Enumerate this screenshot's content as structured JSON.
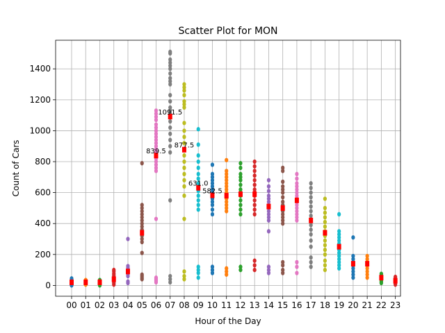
{
  "chart_data": {
    "type": "scatter",
    "title": "Scatter Plot for MON",
    "xlabel": "Hour of the Day",
    "ylabel": "Count of Cars",
    "grid": true,
    "legend": "none",
    "ylim": [
      -70,
      1585
    ],
    "yticks": [
      0,
      200,
      400,
      600,
      800,
      1000,
      1200,
      1400
    ],
    "categories": [
      "00",
      "01",
      "02",
      "03",
      "04",
      "05",
      "06",
      "07",
      "08",
      "09",
      "10",
      "11",
      "12",
      "13",
      "14",
      "15",
      "16",
      "17",
      "18",
      "19",
      "20",
      "21",
      "22",
      "23"
    ],
    "palette": [
      "#1f77b4",
      "#ff7f0e",
      "#2ca02c",
      "#d62728",
      "#9467bd",
      "#8c564b",
      "#e377c2",
      "#7f7f7f",
      "#bcbd22",
      "#17becf"
    ],
    "median_color": "#ff0000",
    "series": [
      {
        "x": "00",
        "points": [
          0,
          5,
          10,
          15,
          20,
          25,
          30,
          35,
          45
        ],
        "median": 20
      },
      {
        "x": "01",
        "points": [
          5,
          10,
          15,
          20,
          25,
          30,
          35
        ],
        "median": 20
      },
      {
        "x": "02",
        "points": [
          0,
          5,
          10,
          15,
          20,
          25,
          30,
          35
        ],
        "median": 20
      },
      {
        "x": "03",
        "points": [
          5,
          15,
          25,
          35,
          45,
          55,
          65,
          75,
          90,
          100
        ],
        "median": 40
      },
      {
        "x": "04",
        "points": [
          15,
          25,
          60,
          75,
          85,
          95,
          105,
          115,
          125,
          300
        ],
        "median": 90
      },
      {
        "x": "05",
        "points": [
          40,
          50,
          60,
          70,
          210,
          280,
          300,
          320,
          340,
          360,
          380,
          400,
          420,
          440,
          460,
          480,
          500,
          520,
          790
        ],
        "median": 340
      },
      {
        "x": "06",
        "points": [
          20,
          30,
          40,
          50,
          430,
          740,
          760,
          780,
          800,
          820,
          840,
          860,
          880,
          900,
          920,
          940,
          960,
          980,
          1000,
          1020,
          1040,
          1070,
          1090,
          1110,
          1130
        ],
        "median": 839.5
      },
      {
        "x": "07",
        "points": [
          20,
          40,
          60,
          550,
          860,
          900,
          940,
          980,
          1020,
          1060,
          1090,
          1110,
          1130,
          1150,
          1190,
          1230,
          1300,
          1320,
          1340,
          1370,
          1400,
          1420,
          1440,
          1460,
          1500,
          1510
        ],
        "median": 1091.5
      },
      {
        "x": "08",
        "points": [
          40,
          60,
          90,
          430,
          580,
          640,
          680,
          720,
          760,
          800,
          840,
          880,
          920,
          960,
          1000,
          1050,
          1150,
          1170,
          1190,
          1230,
          1260,
          1280,
          1300
        ],
        "median": 877.5
      },
      {
        "x": "09",
        "points": [
          50,
          80,
          100,
          120,
          490,
          520,
          550,
          580,
          610,
          640,
          660,
          690,
          720,
          760,
          800,
          840,
          910,
          1010
        ],
        "median": 631.0
      },
      {
        "x": "10",
        "points": [
          80,
          100,
          120,
          460,
          490,
          520,
          540,
          560,
          580,
          600,
          620,
          640,
          660,
          680,
          700,
          720,
          780
        ],
        "median": 582.5
      },
      {
        "x": "11",
        "points": [
          70,
          90,
          110,
          480,
          500,
          520,
          540,
          560,
          580,
          600,
          620,
          640,
          660,
          680,
          700,
          720,
          740,
          810
        ],
        "median": 580
      },
      {
        "x": "12",
        "points": [
          100,
          120,
          460,
          490,
          520,
          550,
          580,
          600,
          620,
          650,
          680,
          700,
          720,
          760,
          790
        ],
        "median": 590
      },
      {
        "x": "13",
        "points": [
          100,
          130,
          160,
          460,
          490,
          520,
          550,
          580,
          600,
          620,
          650,
          680,
          710,
          740,
          770,
          800
        ],
        "median": 590
      },
      {
        "x": "14",
        "points": [
          80,
          100,
          120,
          350,
          420,
          440,
          460,
          480,
          500,
          520,
          540,
          560,
          580,
          610,
          640,
          680
        ],
        "median": 510
      },
      {
        "x": "15",
        "points": [
          80,
          100,
          130,
          150,
          400,
          420,
          440,
          460,
          480,
          500,
          520,
          540,
          570,
          600,
          620,
          640,
          670,
          740,
          760
        ],
        "median": 500
      },
      {
        "x": "16",
        "points": [
          80,
          120,
          150,
          420,
          440,
          460,
          480,
          500,
          520,
          540,
          560,
          580,
          600,
          620,
          640,
          660,
          690,
          720
        ],
        "median": 550
      },
      {
        "x": "17",
        "points": [
          120,
          150,
          180,
          250,
          290,
          330,
          360,
          390,
          420,
          450,
          480,
          510,
          540,
          570,
          600,
          630,
          660
        ],
        "median": 420
      },
      {
        "x": "18",
        "points": [
          100,
          130,
          160,
          200,
          230,
          260,
          290,
          320,
          350,
          380,
          410,
          440,
          470,
          500,
          560
        ],
        "median": 340
      },
      {
        "x": "19",
        "points": [
          110,
          130,
          150,
          170,
          190,
          210,
          230,
          250,
          270,
          290,
          310,
          330,
          350,
          460
        ],
        "median": 250
      },
      {
        "x": "20",
        "points": [
          50,
          70,
          90,
          110,
          130,
          150,
          170,
          190,
          310
        ],
        "median": 140
      },
      {
        "x": "21",
        "points": [
          50,
          70,
          90,
          110,
          130,
          150,
          170,
          190
        ],
        "median": 140
      },
      {
        "x": "22",
        "points": [
          15,
          25,
          35,
          45,
          55,
          65,
          75
        ],
        "median": 50
      },
      {
        "x": "23",
        "points": [
          5,
          15,
          25,
          35,
          45,
          55
        ],
        "median": 30
      }
    ],
    "annotations": [
      {
        "x": "06",
        "y": 839.5,
        "text": "839.5"
      },
      {
        "x": "07",
        "y": 1091.5,
        "text": "1091.5"
      },
      {
        "x": "08",
        "y": 877.5,
        "text": "877.5"
      },
      {
        "x": "09",
        "y": 631.0,
        "text": "631.0"
      },
      {
        "x": "10",
        "y": 582.5,
        "text": "582.5"
      }
    ]
  }
}
